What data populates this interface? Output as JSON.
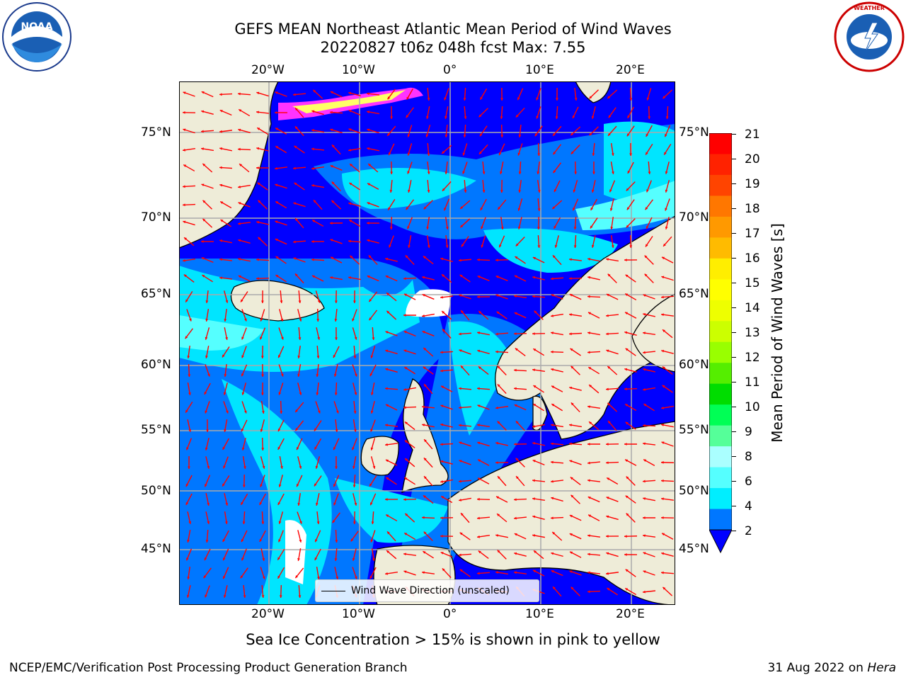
{
  "title": {
    "line1": "GEFS MEAN Northeast Atlantic Mean Period of Wind Waves",
    "line2": "20220827 t06z 048h fcst   Max: 7.55"
  },
  "logos": {
    "left": "NOAA",
    "right": "NATIONAL WEATHER SERVICE"
  },
  "map": {
    "lon_labels": [
      "20°W",
      "10°W",
      "0°",
      "10°E",
      "20°E"
    ],
    "lat_labels": [
      "75°N",
      "70°N",
      "65°N",
      "60°N",
      "55°N",
      "50°N",
      "45°N"
    ],
    "legend_label": "Wind Wave Direction (unscaled)",
    "colors": {
      "land": "#eeecd8",
      "ocean_low": "#0000ff",
      "ocean_mid": "#0077ff",
      "ocean_high": "#00e5ff",
      "ocean_cyan": "#55ffff",
      "ice_pink": "#ff33ff",
      "ice_yellow": "#ffff66",
      "arrow": "#ff0000",
      "grid": "#aaaaaa"
    }
  },
  "colorbar": {
    "title": "Mean Period of Wind Waves [s]",
    "ticks": [
      "21",
      "20",
      "19",
      "18",
      "17",
      "16",
      "15",
      "14",
      "13",
      "12",
      "11",
      "10",
      "9",
      "8",
      "6",
      "4",
      "2"
    ],
    "colors": [
      "#ff0000",
      "#ff2200",
      "#ff4400",
      "#ff7700",
      "#ff9900",
      "#ffbb00",
      "#ffee00",
      "#ffff00",
      "#eeff00",
      "#ccff00",
      "#99ff00",
      "#55ee00",
      "#00dd00",
      "#00ff55",
      "#55ff99",
      "#aaffff",
      "#55ffff",
      "#00eeff",
      "#0077ff"
    ]
  },
  "caption": "Sea Ice Concentration > 15% is shown in pink to yellow",
  "footer": {
    "left": "NCEP/EMC/Verification Post Processing Product Generation Branch",
    "right_date": "31 Aug 2022 on ",
    "right_host": "Hera"
  }
}
